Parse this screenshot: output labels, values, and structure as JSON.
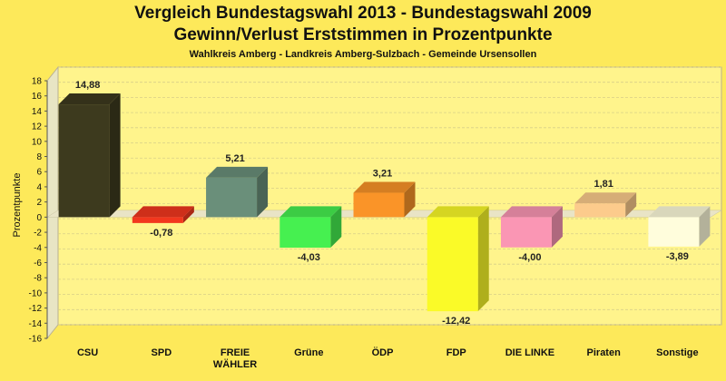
{
  "header": {
    "title": "Vergleich Bundestagswahl 2013 - Bundestagswahl 2009",
    "subtitle": "Gewinn/Verlust Erststimmen in Prozentpunkte",
    "caption": "Wahlkreis Amberg - Landkreis Amberg-Sulzbach - Gemeinde Ursensollen"
  },
  "chart_data": {
    "type": "bar",
    "title": "Gewinn/Verlust Erststimmen in Prozentpunkte",
    "xlabel": "",
    "ylabel": "Prozentpunkte",
    "ylim": [
      -16,
      18
    ],
    "ytick_step": 2,
    "grid": true,
    "categories": [
      [
        "CSU"
      ],
      [
        "SPD"
      ],
      [
        "FREIE",
        "WÄHLER"
      ],
      [
        "Grüne"
      ],
      [
        "ÖDP"
      ],
      [
        "FDP"
      ],
      [
        "DIE LINKE"
      ],
      [
        "Piraten"
      ],
      [
        "Sonstige"
      ]
    ],
    "values": [
      14.88,
      -0.78,
      5.21,
      -4.03,
      3.21,
      -12.42,
      -4.0,
      1.81,
      -3.89
    ],
    "value_labels": [
      "14,88",
      "-0,78",
      "5,21",
      "-4,03",
      "3,21",
      "-12,42",
      "-4,00",
      "1,81",
      "-3,89"
    ],
    "colors": [
      "#3D3A1E",
      "#F2371E",
      "#6A8F7A",
      "#46F050",
      "#FA9428",
      "#FAFA28",
      "#FA96B4",
      "#FCCB8C",
      "#FFFDDC"
    ]
  }
}
